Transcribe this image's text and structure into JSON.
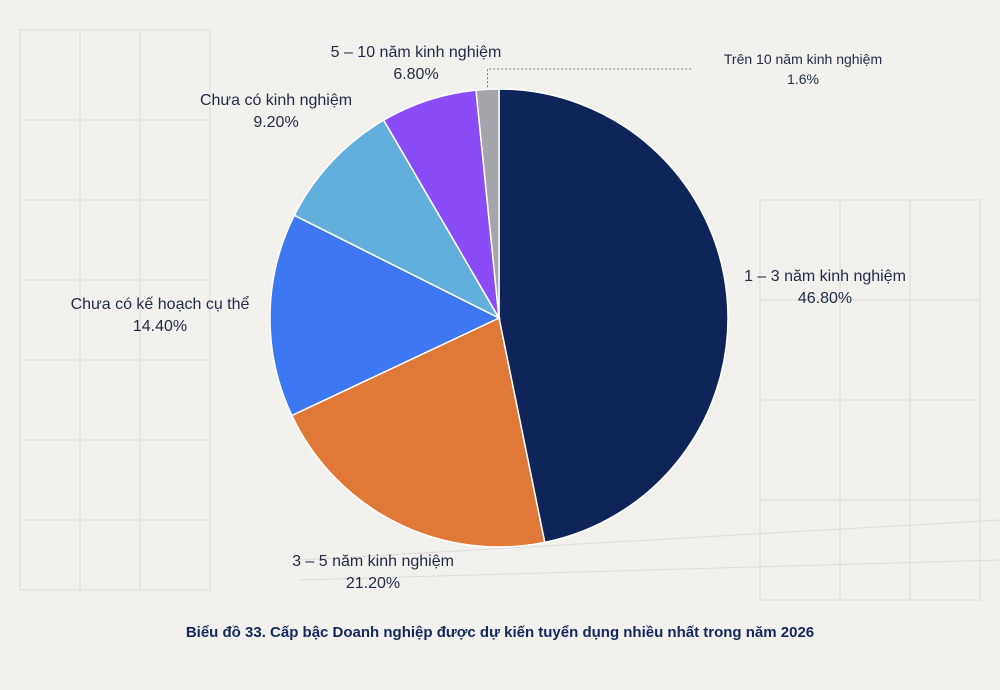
{
  "chart_data": {
    "type": "pie",
    "title": "Biểu đồ 33. Cấp bậc Doanh nghiệp được dự kiến tuyển dụng nhiều nhất trong năm 2026",
    "slices": [
      {
        "label": "1 – 3 năm kinh nghiệm",
        "value": 46.8,
        "value_text": "46.80%",
        "color": "#0f2459"
      },
      {
        "label": "3 – 5 năm kinh nghiệm",
        "value": 21.2,
        "value_text": "21.20%",
        "color": "#e07838"
      },
      {
        "label": "Chưa có kế hoạch cụ thể",
        "value": 14.4,
        "value_text": "14.40%",
        "color": "#3d78f2"
      },
      {
        "label": "Chưa có kinh nghiệm",
        "value": 9.2,
        "value_text": "9.20%",
        "color": "#62afdd"
      },
      {
        "label": "5 – 10 năm kinh nghiệm",
        "value": 6.8,
        "value_text": "6.80%",
        "color": "#8a4cf7"
      },
      {
        "label": "Trên 10 năm kinh nghiệm",
        "value": 1.6,
        "value_text": "1.6%",
        "color": "#a3a5ab"
      }
    ]
  }
}
